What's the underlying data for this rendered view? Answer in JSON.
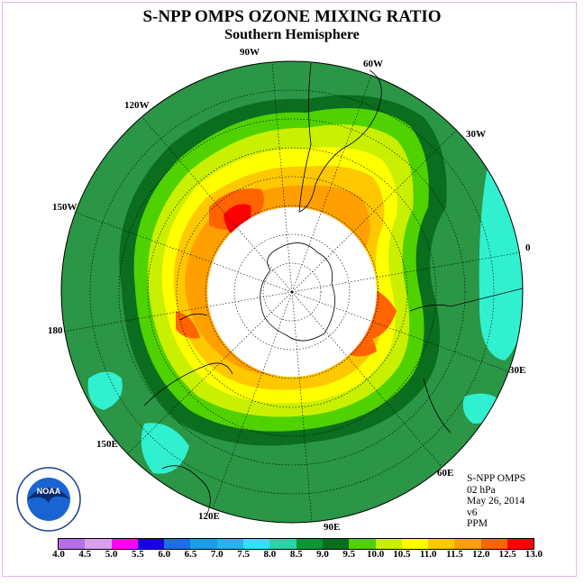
{
  "header": {
    "title": "S-NPP OMPS OZONE MIXING RATIO",
    "subtitle": "Southern Hemisphere"
  },
  "longitudes": [
    "90W",
    "60W",
    "120W",
    "30W",
    "150W",
    "0",
    "180",
    "30E",
    "150E",
    "60E",
    "120E",
    "90E"
  ],
  "info": {
    "instrument": "S-NPP OMPS",
    "level": "02 hPa",
    "date": "May 26, 2014",
    "version": "v6",
    "units": "PPM"
  },
  "logo_text": "NOAA",
  "colorbar": {
    "ticks": [
      "4.0",
      "4.5",
      "5.0",
      "5.5",
      "6.0",
      "6.5",
      "7.0",
      "7.5",
      "8.0",
      "8.5",
      "9.0",
      "9.5",
      "10.0",
      "10.5",
      "11.0",
      "11.5",
      "12.0",
      "12.5",
      "13.0"
    ],
    "colors": [
      "#b36ee8",
      "#d9a0f0",
      "#ff00ff",
      "#1a00e6",
      "#1a6ee6",
      "#1a9ee6",
      "#25b4f0",
      "#30e0ff",
      "#2ad4a8",
      "#0a9632",
      "#0a6e1e",
      "#50d200",
      "#c8f000",
      "#ffff00",
      "#ffc800",
      "#ffa000",
      "#ff6400",
      "#ff0000",
      "#8b4b28"
    ]
  }
}
